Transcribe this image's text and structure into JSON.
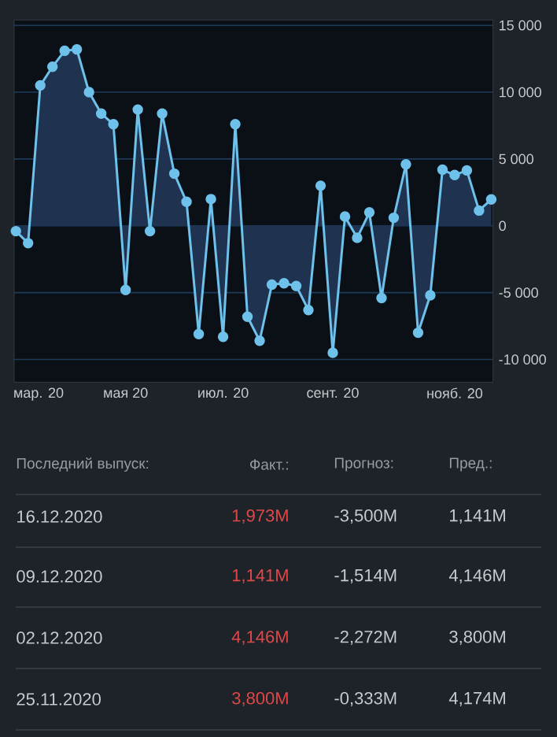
{
  "chart_data": {
    "type": "area",
    "x": [
      "2020-03-18",
      "2020-03-25",
      "2020-04-01",
      "2020-04-08",
      "2020-04-15",
      "2020-04-22",
      "2020-04-29",
      "2020-05-06",
      "2020-05-13",
      "2020-05-20",
      "2020-05-27",
      "2020-06-03",
      "2020-06-10",
      "2020-06-17",
      "2020-06-24",
      "2020-07-01",
      "2020-07-08",
      "2020-07-15",
      "2020-07-22",
      "2020-07-29",
      "2020-08-05",
      "2020-08-12",
      "2020-08-19",
      "2020-08-26",
      "2020-09-02",
      "2020-09-09",
      "2020-09-16",
      "2020-09-23",
      "2020-09-30",
      "2020-10-07",
      "2020-10-14",
      "2020-10-21",
      "2020-10-28",
      "2020-11-04",
      "2020-11-11",
      "2020-11-18",
      "2020-11-25",
      "2020-12-02",
      "2020-12-09",
      "2020-12-16"
    ],
    "series": [
      {
        "color": "#6ec1ea",
        "values": [
          -400,
          -1300,
          10500,
          11900,
          13100,
          13200,
          10000,
          8400,
          7600,
          -4800,
          8700,
          -400,
          8400,
          3900,
          1800,
          -8100,
          2000,
          -8300,
          7600,
          -6800,
          -8600,
          -4400,
          -4300,
          -4500,
          -6300,
          3000,
          -9500,
          700,
          -900,
          1000,
          -5400,
          600,
          4600,
          -8000,
          -5200,
          4200,
          3800,
          4146,
          1141,
          1973
        ]
      }
    ],
    "xlim": [
      "2020-03-17",
      "2020-12-17"
    ],
    "xticks": [
      {
        "value": "2020-03-31",
        "label": "мар. 20"
      },
      {
        "value": "2020-05-20",
        "label": "мая 20"
      },
      {
        "value": "2020-07-15",
        "label": "июл. 20"
      },
      {
        "value": "2020-09-16",
        "label": "сент. 20"
      },
      {
        "value": "2020-11-25",
        "label": "нояб. 20"
      }
    ],
    "ylim": [
      -11700,
      15400
    ],
    "yticks": [
      {
        "value": -10000,
        "label": "-10 000"
      },
      {
        "value": -5000,
        "label": "-5 000"
      },
      0,
      {
        "value": 5000,
        "label": "5 000"
      },
      {
        "value": 10000,
        "label": "10 000"
      },
      {
        "value": 15000,
        "label": "15 000"
      }
    ],
    "grid": "y",
    "marker": "circle",
    "line_style": "solid",
    "annotations": [
      "Последний выпуск:",
      "Факт.:",
      "Прогноз:",
      "Пред.:",
      "16.12.2020",
      "1,973M",
      "-3,500M",
      "1,141M",
      "09.12.2020",
      "1,141M",
      "-1,514M",
      "4,146M",
      "02.12.2020",
      "4,146M",
      "-2,272M",
      "3,800M",
      "25.11.2020",
      "3,800M",
      "-0,333M",
      "4,174M"
    ]
  }
}
